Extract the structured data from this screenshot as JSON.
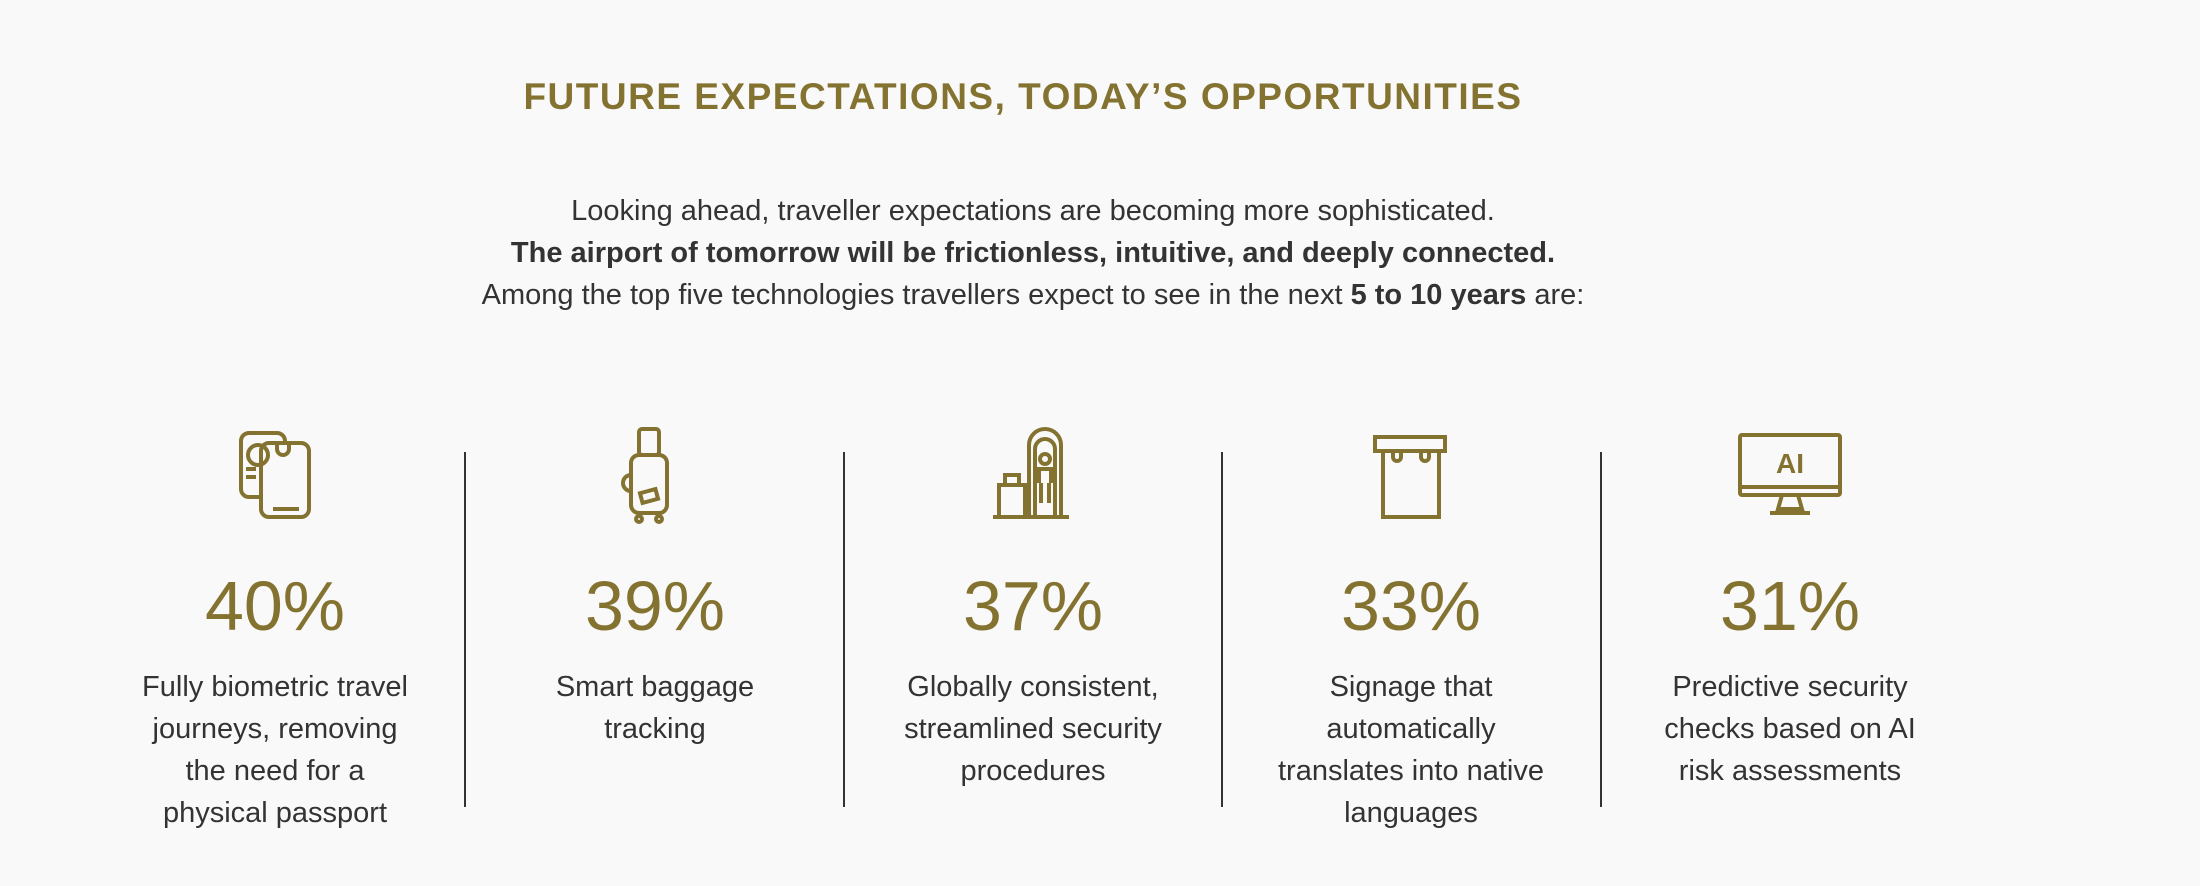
{
  "header": {
    "title": "FUTURE EXPECTATIONS, TODAY’S OPPORTUNITIES"
  },
  "intro": {
    "lines": [
      [
        {
          "text": "Looking ahead, traveller expectations are becoming more sophisticated.",
          "bold": false
        }
      ],
      [
        {
          "text": "The airport of tomorrow will be frictionless, intuitive, and deeply connected.",
          "bold": true
        }
      ],
      [
        {
          "text": "Among the top five technologies travellers expect to see in the next ",
          "bold": false
        },
        {
          "text": "5 to 10 years",
          "bold": true
        },
        {
          "text": " are:",
          "bold": false
        }
      ]
    ]
  },
  "items": [
    {
      "value": "40%",
      "description": [
        "Fully biometric travel",
        "journeys, removing",
        "the need for a",
        "physical passport"
      ]
    },
    {
      "value": "39%",
      "description": [
        "Smart baggage",
        "tracking"
      ]
    },
    {
      "value": "37%",
      "description": [
        "Globally consistent,",
        "streamlined security",
        "procedures"
      ]
    },
    {
      "value": "33%",
      "description": [
        "Signage that",
        "automatically",
        "translates into native",
        "languages"
      ]
    },
    {
      "value": "31%",
      "description": [
        "Predictive security",
        "checks based on AI",
        "risk assessments"
      ],
      "icon_label": "AI"
    }
  ]
}
